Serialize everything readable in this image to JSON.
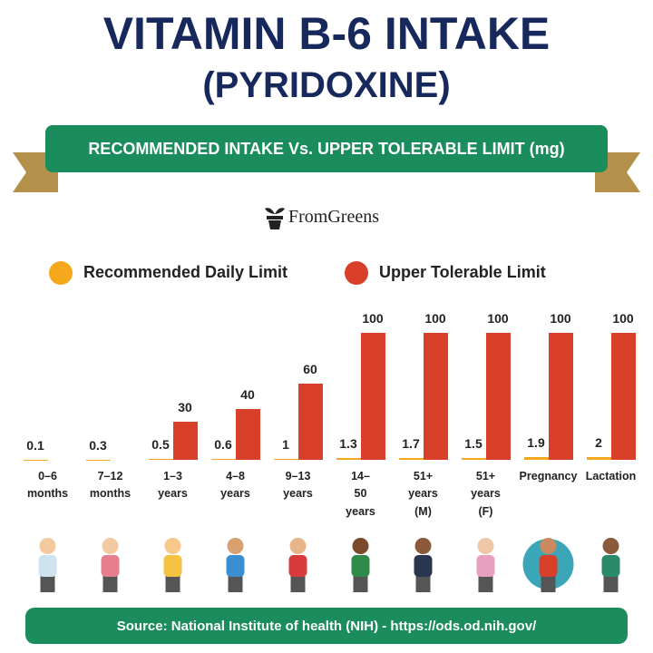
{
  "chart_data": {
    "type": "bar",
    "title": "VITAMIN B-6 INTAKE",
    "subtitle": "(PYRIDOXINE)",
    "banner": "RECOMMENDED INTAKE Vs. UPPER TOLERABLE LIMIT (mg)",
    "brand": "FromGreens",
    "categories": [
      "0–6 months",
      "7–12 months",
      "1–3 years",
      "4–8 years",
      "9–13 years",
      "14–50 years",
      "51+ years (M)",
      "51+ years (F)",
      "Pregnancy",
      "Lactation"
    ],
    "series": [
      {
        "name": "Recommended Daily Limit",
        "color": "#f5a81c",
        "values": [
          0.1,
          0.3,
          0.5,
          0.6,
          1,
          1.3,
          1.7,
          1.5,
          1.9,
          2
        ]
      },
      {
        "name": "Upper Tolerable Limit",
        "color": "#d9402a",
        "values": [
          null,
          null,
          30,
          40,
          60,
          100,
          100,
          100,
          100,
          100
        ]
      }
    ],
    "ylim": [
      0,
      100
    ],
    "source": "Source: National Institute of health (NIH) - https://ods.od.nih.gov/"
  }
}
